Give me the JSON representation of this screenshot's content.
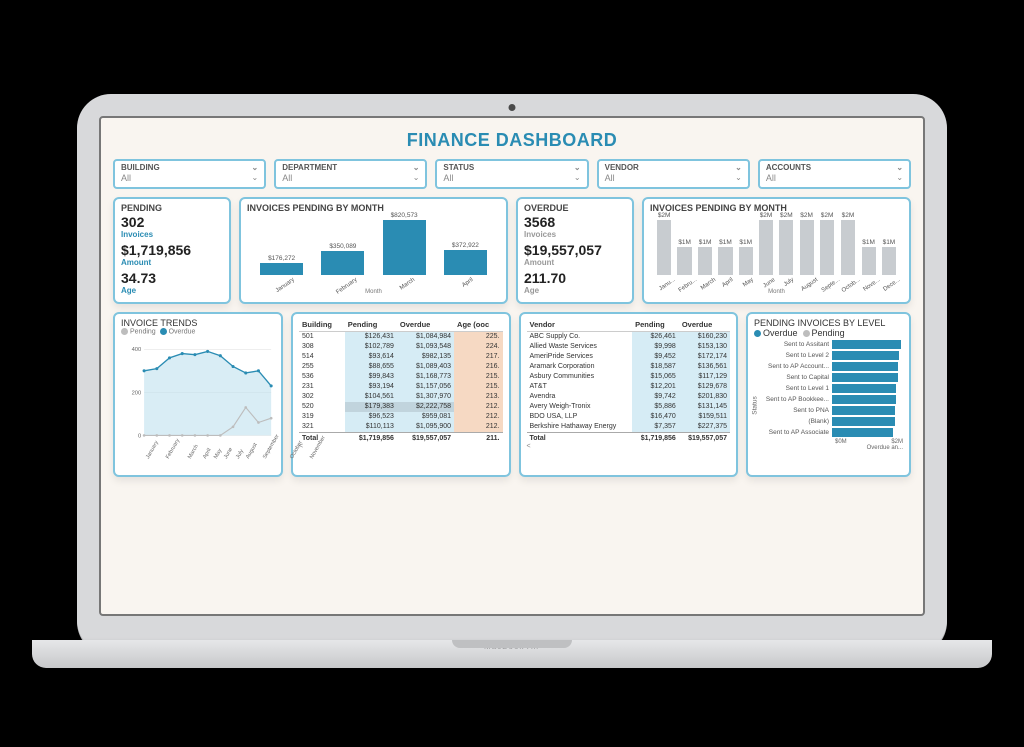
{
  "title": "FINANCE DASHBOARD",
  "filters": [
    {
      "label": "BUILDING",
      "value": "All"
    },
    {
      "label": "DEPARTMENT",
      "value": "All"
    },
    {
      "label": "STATUS",
      "value": "All"
    },
    {
      "label": "VENDOR",
      "value": "All"
    },
    {
      "label": "ACCOUNTS",
      "value": "All"
    }
  ],
  "pending": {
    "title": "PENDING",
    "invoices": "302",
    "invoices_lbl": "Invoices",
    "amount": "$1,719,856",
    "amount_lbl": "Amount",
    "age": "34.73",
    "age_lbl": "Age",
    "sub_color": "#2a8cb3"
  },
  "overdue": {
    "title": "OVERDUE",
    "invoices": "3568",
    "invoices_lbl": "Invoices",
    "amount": "$19,557,057",
    "amount_lbl": "Amount",
    "age": "211.70",
    "age_lbl": "Age",
    "sub_color": "#9aa0a4"
  },
  "pending_month": {
    "title": "INVOICES PENDING BY MONTH",
    "axis": "Month",
    "max": 900000,
    "bar_color": "#2a8cb3",
    "bars": [
      {
        "label": "January",
        "value": 176272,
        "disp": "$176,272"
      },
      {
        "label": "February",
        "value": 350089,
        "disp": "$350,089"
      },
      {
        "label": "March",
        "value": 820573,
        "disp": "$820,573"
      },
      {
        "label": "April",
        "value": 372922,
        "disp": "$372,922"
      }
    ]
  },
  "overdue_month": {
    "title": "INVOICES PENDING BY MONTH",
    "axis": "Month",
    "max": 2200000,
    "bar_color": "#c8ccd0",
    "bars": [
      {
        "label": "Janu...",
        "disp": "$2M",
        "value": 2000000
      },
      {
        "label": "Febru...",
        "disp": "$1M",
        "value": 1000000
      },
      {
        "label": "March",
        "disp": "$1M",
        "value": 1000000
      },
      {
        "label": "April",
        "disp": "$1M",
        "value": 1000000
      },
      {
        "label": "May",
        "disp": "$1M",
        "value": 1000000
      },
      {
        "label": "June",
        "disp": "$2M",
        "value": 2000000
      },
      {
        "label": "July",
        "disp": "$2M",
        "value": 2000000
      },
      {
        "label": "August",
        "disp": "$2M",
        "value": 2000000
      },
      {
        "label": "Septe...",
        "disp": "$2M",
        "value": 2000000
      },
      {
        "label": "Octob...",
        "disp": "$2M",
        "value": 2000000
      },
      {
        "label": "Nove...",
        "disp": "$1M",
        "value": 1000000
      },
      {
        "label": "Dece...",
        "disp": "$1M",
        "value": 1000000
      }
    ]
  },
  "trends": {
    "title": "INVOICE TRENDS",
    "legend_pending": "Pending",
    "legend_overdue": "Overdue",
    "yticks": [
      "400",
      "200",
      "0"
    ],
    "months": [
      "January",
      "February",
      "March",
      "April",
      "May",
      "June",
      "July",
      "August",
      "September",
      "October",
      "November"
    ],
    "overdue_series": [
      300,
      310,
      360,
      380,
      375,
      390,
      370,
      320,
      290,
      300,
      230
    ],
    "pending_series": [
      0,
      0,
      0,
      0,
      0,
      0,
      0,
      40,
      130,
      60,
      80
    ],
    "overdue_color": "#2a8cb3",
    "pending_color": "#bdbdbd",
    "area_fill": "#bfe1ef"
  },
  "building_table": {
    "cols": [
      "Building",
      "Pending",
      "Overdue",
      "Age (ooc"
    ],
    "rows": [
      [
        "501",
        "$126,431",
        "$1,084,984",
        "225."
      ],
      [
        "308",
        "$102,789",
        "$1,093,548",
        "224."
      ],
      [
        "514",
        "$93,614",
        "$982,135",
        "217."
      ],
      [
        "255",
        "$88,655",
        "$1,089,403",
        "216."
      ],
      [
        "536",
        "$99,843",
        "$1,168,773",
        "215."
      ],
      [
        "231",
        "$93,194",
        "$1,157,056",
        "215."
      ],
      [
        "302",
        "$104,561",
        "$1,307,970",
        "213."
      ],
      [
        "520",
        "$179,383",
        "$2,222,758",
        "212."
      ],
      [
        "319",
        "$96,523",
        "$959,081",
        "212."
      ],
      [
        "321",
        "$110,113",
        "$1,095,900",
        "212."
      ]
    ],
    "total": [
      "Total",
      "$1,719,856",
      "$19,557,057",
      "211."
    ],
    "pending_bg": "#d6ecf5",
    "overdue_bg": "#d6ecf5",
    "age_bg": "#f6d9c3",
    "highlight_row_idx": 7
  },
  "vendor_table": {
    "cols": [
      "Vendor",
      "Pending",
      "Overdue"
    ],
    "rows": [
      [
        "ABC Supply Co.",
        "$26,461",
        "$160,230"
      ],
      [
        "Allied Waste Services",
        "$9,998",
        "$153,130"
      ],
      [
        "AmeriPride Services",
        "$9,452",
        "$172,174"
      ],
      [
        "Aramark Corporation",
        "$18,587",
        "$136,561"
      ],
      [
        "Asbury Communities",
        "$15,065",
        "$117,129"
      ],
      [
        "AT&T",
        "$12,201",
        "$129,678"
      ],
      [
        "Avendra",
        "$9,742",
        "$201,830"
      ],
      [
        "Avery Weigh-Tronix",
        "$5,886",
        "$131,145"
      ],
      [
        "BDO USA, LLP",
        "$16,470",
        "$159,511"
      ],
      [
        "Berkshire Hathaway Energy",
        "$7,357",
        "$227,375"
      ]
    ],
    "total": [
      "Total",
      "$1,719,856",
      "$19,557,057"
    ],
    "pending_bg": "#d6ecf5",
    "overdue_bg": "#d6ecf5"
  },
  "level": {
    "title": "PENDING INVOICES BY LEVEL",
    "legend_overdue": "Overdue",
    "legend_pending": "Pending",
    "status_lbl": "Status",
    "axis_lbl": "Overdue an...",
    "axis_ticks": [
      "$0M",
      "$2M"
    ],
    "max": 2400000,
    "bar_color": "#2a8cb3",
    "items": [
      {
        "label": "Sent to Assitant",
        "value": 2200000
      },
      {
        "label": "Sent to Level 2",
        "value": 2150000
      },
      {
        "label": "Sent to AP Account...",
        "value": 2100000
      },
      {
        "label": "Sent to Capital",
        "value": 2100000
      },
      {
        "label": "Sent to Level 1",
        "value": 2050000
      },
      {
        "label": "Sent to AP Bookkee...",
        "value": 2050000
      },
      {
        "label": "Sent to PNA",
        "value": 2000000
      },
      {
        "label": "(Blank)",
        "value": 2000000
      },
      {
        "label": "Sent to AP Associate",
        "value": 1950000
      }
    ]
  }
}
